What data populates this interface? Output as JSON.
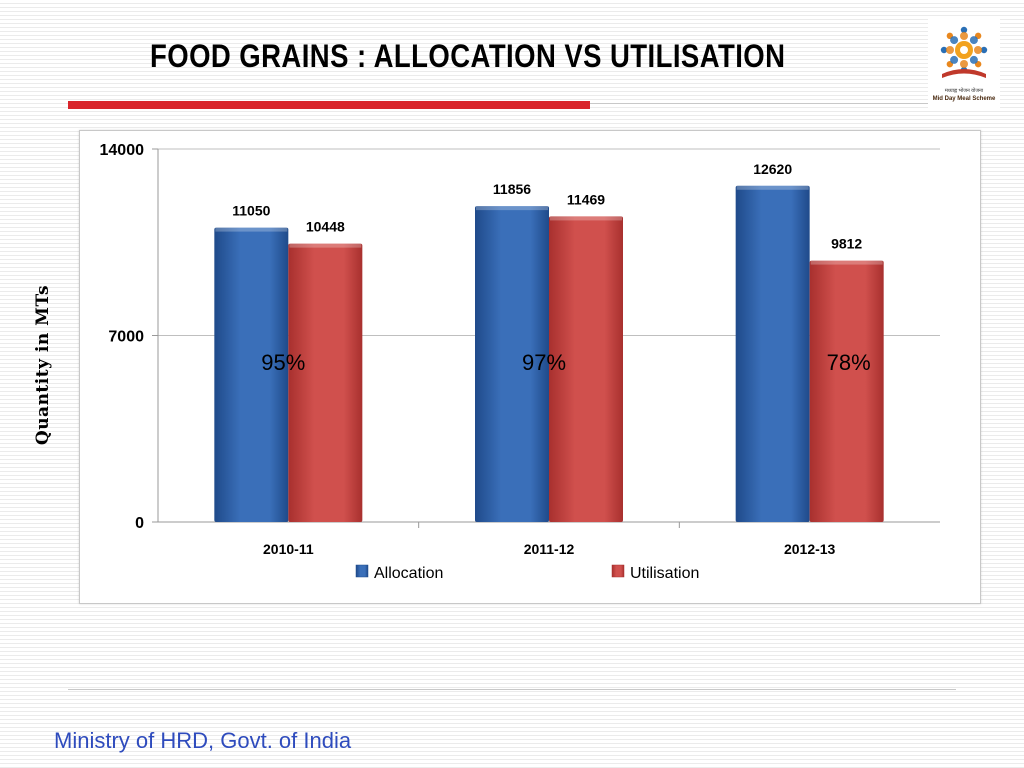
{
  "slide": {
    "title": "FOOD GRAINS : ALLOCATION VS UTILISATION",
    "footer": "Ministry of HRD, Govt. of India",
    "logo": {
      "icon": "mid-day-meal-emblem",
      "hindi_text": "मध्याह्न भोजन योजना",
      "english_text": "Mid Day Meal Scheme"
    }
  },
  "colors": {
    "allocation": "#3a6fb9",
    "utilisation": "#d0504d",
    "accent_red": "#d9252b",
    "footer_blue": "#2e4bbd"
  },
  "chart_data": {
    "type": "bar",
    "categories": [
      "2010-11",
      "2011-12",
      "2012-13"
    ],
    "series": [
      {
        "name": "Allocation",
        "values": [
          11050,
          11856,
          12620
        ],
        "labels": [
          "11050",
          "11856",
          "12620"
        ]
      },
      {
        "name": "Utilisation",
        "values": [
          10448,
          11469,
          9812
        ],
        "labels": [
          "10448",
          "11469",
          "9812"
        ]
      }
    ],
    "annotations": [
      "95%",
      "97%",
      "78%"
    ],
    "title": "",
    "xlabel": "",
    "ylabel": "Quantity in MTs",
    "ylim": [
      0,
      14000
    ],
    "yticks": [
      "0",
      "7000",
      "14000"
    ],
    "grid": true,
    "legend": "bottom"
  }
}
